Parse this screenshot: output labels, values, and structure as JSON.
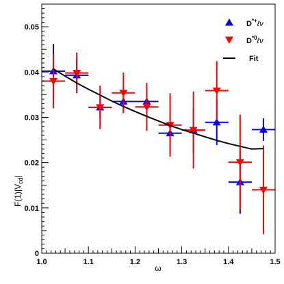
{
  "chart_data": {
    "type": "scatter",
    "title": "",
    "xlabel": "ω",
    "ylabel": "F(1)|V_cd|",
    "ylabel_main": "F(1)|V",
    "ylabel_sub": "cd",
    "ylabel_close": "|",
    "xlim": [
      1.0,
      1.5
    ],
    "ylim": [
      0,
      0.055
    ],
    "xticks": [
      "1.0",
      "1.1",
      "1.2",
      "1.3",
      "1.4",
      "1.5"
    ],
    "yticks": [
      "0",
      "0.01",
      "0.02",
      "0.03",
      "0.04",
      "0.05"
    ],
    "xtick_values": [
      1.0,
      1.1,
      1.2,
      1.3,
      1.4,
      1.5
    ],
    "ytick_values": [
      0,
      0.01,
      0.02,
      0.03,
      0.04,
      0.05
    ],
    "legend_placement": "top-right",
    "grid": false,
    "series": [
      {
        "name": "D*+ℓν",
        "legend_base": "D",
        "legend_sup": "*+",
        "legend_rest": "ℓν",
        "marker": "triangle-up",
        "color": "#0000ff",
        "x": [
          1.025,
          1.075,
          1.125,
          1.175,
          1.225,
          1.275,
          1.325,
          1.375,
          1.425,
          1.475
        ],
        "y": [
          0.0402,
          0.0393,
          0.0322,
          0.0335,
          0.0335,
          0.0265,
          0.0272,
          0.0289,
          0.0157,
          0.0273
        ],
        "xerr": 0.025,
        "yerr": [
          0.006,
          0.0035,
          0.0023,
          0.0025,
          0.0025,
          0.0045,
          0.005,
          0.005,
          0.007,
          0.0025
        ]
      },
      {
        "name": "D*0ℓν",
        "legend_base": "D",
        "legend_sup": "*0",
        "legend_rest": "ℓν",
        "marker": "triangle-down",
        "color": "#ff0000",
        "x": [
          1.025,
          1.075,
          1.125,
          1.175,
          1.225,
          1.275,
          1.325,
          1.375,
          1.425,
          1.475
        ],
        "y": [
          0.038,
          0.0398,
          0.0322,
          0.0354,
          0.0323,
          0.0283,
          0.0272,
          0.0359,
          0.0201,
          0.014
        ],
        "xerr": 0.025,
        "yerr": [
          0.006,
          0.0045,
          0.0048,
          0.0045,
          0.0053,
          0.007,
          0.0085,
          0.0065,
          0.0105,
          0.0098
        ]
      },
      {
        "name": "Fit",
        "marker": "line",
        "color": "#000000",
        "x": [
          1.025,
          1.05,
          1.075,
          1.1,
          1.125,
          1.15,
          1.175,
          1.2,
          1.225,
          1.25,
          1.275,
          1.3,
          1.325,
          1.35,
          1.375,
          1.4,
          1.425,
          1.45,
          1.475
        ],
        "y": [
          0.0407,
          0.0391,
          0.0376,
          0.0362,
          0.0349,
          0.0336,
          0.0324,
          0.0313,
          0.0302,
          0.0292,
          0.0282,
          0.0273,
          0.0265,
          0.0257,
          0.0249,
          0.0242,
          0.0236,
          0.023,
          0.0231
        ]
      }
    ]
  }
}
